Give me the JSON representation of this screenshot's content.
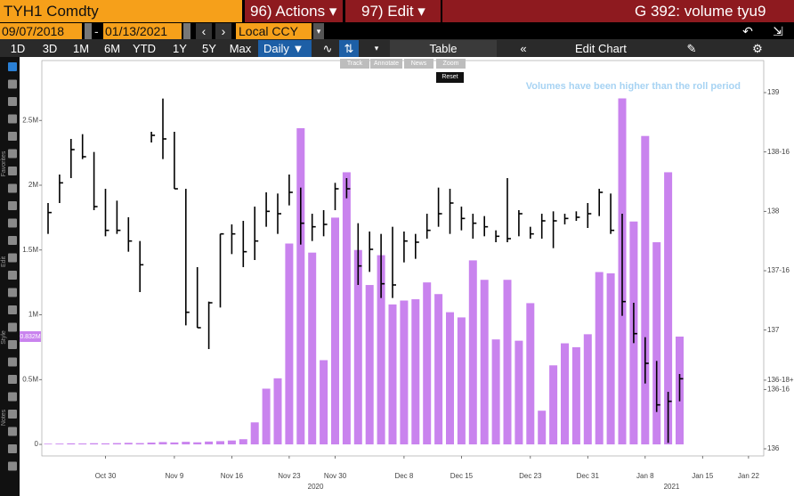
{
  "ui": {
    "ticker": "TYH1 Comdty",
    "actions": "96) Actions ▾",
    "edit": "97) Edit ▾",
    "function": "G 392: volume tyu9",
    "start_date": "09/07/2018",
    "date_sep": "-",
    "end_date": "01/13/2021",
    "currency": "Local CCY",
    "periods": [
      "1D",
      "3D",
      "1M",
      "6M",
      "YTD",
      "1Y",
      "5Y",
      "Max"
    ],
    "frequency": "Daily ▼",
    "table": "Table",
    "edit_chart": "Edit Chart",
    "chart_tools": [
      "Track",
      "Annotate",
      "News",
      "Zoom"
    ],
    "reset": "Reset",
    "side_tabs": [
      "Favorites",
      "Edit",
      "Style",
      "Notes"
    ]
  },
  "chart_data": {
    "type": "combo",
    "annotation": "Volumes have been higher than the roll period",
    "categories": [
      null,
      null,
      null,
      null,
      null,
      "Oct 30",
      null,
      null,
      null,
      null,
      null,
      "Nov 9",
      null,
      null,
      null,
      null,
      "Nov 16",
      null,
      null,
      null,
      null,
      "Nov 23",
      null,
      null,
      null,
      "Nov 30",
      null,
      null,
      null,
      null,
      null,
      "Dec 8",
      null,
      null,
      null,
      null,
      "Dec 15",
      null,
      null,
      null,
      null,
      null,
      "Dec 23",
      null,
      null,
      null,
      null,
      "Dec 31",
      null,
      null,
      null,
      null,
      "Jan 8",
      null,
      null,
      null,
      null,
      "Jan 15",
      null,
      null,
      null,
      "Jan 22"
    ],
    "x_year_labels": [
      "2020",
      "2021"
    ],
    "ylim": [
      -89000,
      2962000
    ],
    "yticks": [
      {
        "value": 0,
        "label": "0"
      },
      {
        "value": 500000,
        "label": "0.5M"
      },
      {
        "value": 1000000,
        "label": "1M"
      },
      {
        "value": 1500000,
        "label": "1.5M"
      },
      {
        "value": 2000000,
        "label": "2M"
      },
      {
        "value": 2500000,
        "label": "2.5M"
      }
    ],
    "y2lim": [
      135.94,
      139.27
    ],
    "y2ticks": [
      136,
      {
        "value": 136.5,
        "label": "136-16"
      },
      {
        "value": 136.578125,
        "label": "136-18+"
      },
      137,
      {
        "value": 137.5,
        "label": "137-16"
      },
      138,
      {
        "value": 138.5,
        "label": "138-16"
      },
      139
    ],
    "series": [
      {
        "type": "bar",
        "color": "#c983ee",
        "values": [
          5000,
          6000,
          8000,
          7000,
          9000,
          8000,
          10000,
          12000,
          10000,
          14000,
          18000,
          15000,
          20000,
          16000,
          22000,
          25000,
          30000,
          40000,
          170000,
          430000,
          510000,
          1550000,
          2440000,
          1480000,
          650000,
          1750000,
          2100000,
          1500000,
          1230000,
          1460000,
          1080000,
          1110000,
          1120000,
          1250000,
          1160000,
          1020000,
          980000,
          1420000,
          1270000,
          810000,
          1270000,
          800000,
          1090000,
          260000,
          610000,
          780000,
          750000,
          850000,
          1330000,
          1320000,
          2670000,
          1720000,
          2380000,
          1560000,
          2100000,
          832000,
          null,
          null,
          null,
          null,
          null,
          null
        ],
        "value_labels": [
          null,
          null,
          null,
          null,
          null,
          null,
          null,
          null,
          null,
          null,
          null,
          null,
          null,
          null,
          null,
          null,
          null,
          null,
          null,
          null,
          null,
          null,
          null,
          null,
          null,
          null,
          null,
          null,
          null,
          null,
          null,
          null,
          null,
          null,
          null,
          null,
          null,
          null,
          null,
          null,
          null,
          null,
          null,
          null,
          null,
          null,
          null,
          null,
          null,
          null,
          null,
          null,
          null,
          null,
          null,
          "0.832M",
          null,
          null,
          null,
          null,
          null,
          null
        ]
      },
      {
        "type": "hlc",
        "axis": "y2",
        "color": "#000000",
        "high": [
          138.07,
          138.31,
          138.61,
          138.65,
          138.5,
          138.19,
          138.09,
          137.95,
          137.75,
          138.67,
          138.95,
          138.67,
          138.19,
          137.53,
          137.24,
          137.81,
          137.89,
          137.92,
          138.04,
          138.16,
          138.15,
          138.31,
          138.2,
          137.98,
          138.01,
          138.24,
          138.28,
          137.9,
          137.83,
          137.81,
          137.87,
          137.83,
          137.81,
          137.98,
          138.2,
          138.19,
          138.04,
          137.98,
          137.96,
          137.84,
          138.28,
          138.01,
          137.87,
          137.98,
          138,
          137.98,
          138,
          138.07,
          138.19,
          138.15,
          137.98,
          137.23,
          136.94,
          136.74,
          136.48,
          136.63,
          null,
          null,
          null,
          null,
          null,
          null
        ],
        "low": [
          137.81,
          138.07,
          138.28,
          138.44,
          138.01,
          137.79,
          137.81,
          137.66,
          137.32,
          138.58,
          138.44,
          138.19,
          137.04,
          137.02,
          136.84,
          137.19,
          137.64,
          137.53,
          137.59,
          137.87,
          137.81,
          138.05,
          137.72,
          137.75,
          137.79,
          138.01,
          138.11,
          137.38,
          137.49,
          137.27,
          137.27,
          137.57,
          137.6,
          137.77,
          137.87,
          137.81,
          137.84,
          137.77,
          137.79,
          137.74,
          137.74,
          137.79,
          137.77,
          137.77,
          137.69,
          137.89,
          137.92,
          137.86,
          137.96,
          137.81,
          137.12,
          136.89,
          136.55,
          136.31,
          136.05,
          136.4,
          null,
          null,
          null,
          null,
          null,
          null
        ],
        "close": [
          137.99,
          138.24,
          138.52,
          138.46,
          138.04,
          137.84,
          137.84,
          137.75,
          137.55,
          138.64,
          138.61,
          138.19,
          137.15,
          137.02,
          137.23,
          137.81,
          137.81,
          137.66,
          137.75,
          138,
          137.98,
          138.16,
          137.9,
          137.87,
          137.89,
          138.19,
          138.19,
          137.54,
          137.68,
          137.39,
          137.38,
          137.75,
          137.74,
          137.84,
          137.98,
          138.07,
          137.94,
          137.9,
          137.87,
          137.79,
          137.77,
          137.98,
          137.81,
          137.92,
          137.92,
          137.94,
          137.95,
          137.98,
          138.16,
          137.84,
          137.24,
          136.97,
          136.72,
          136.37,
          136.4,
          136.59,
          null,
          null,
          null,
          null,
          null,
          null
        ]
      }
    ]
  }
}
